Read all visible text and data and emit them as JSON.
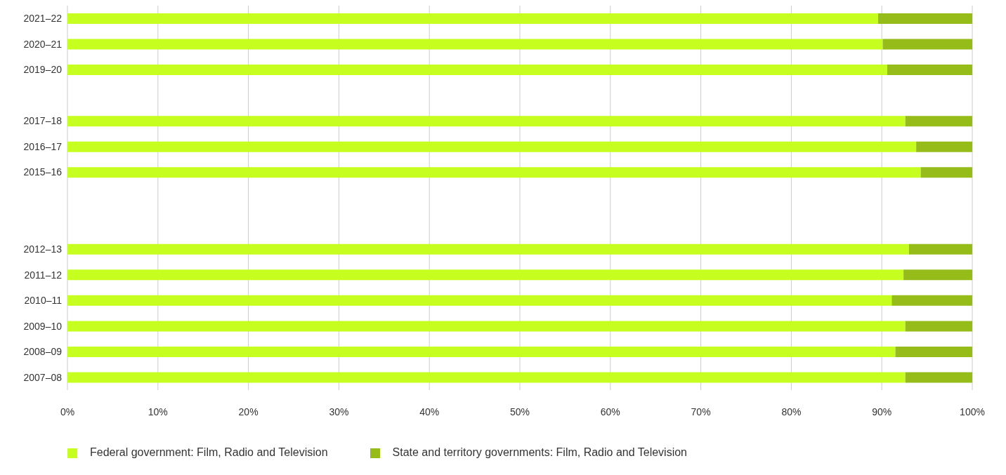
{
  "chart_data": {
    "type": "bar",
    "orientation": "horizontal",
    "stacked": true,
    "categories": [
      "2021–22",
      "2020–21",
      "2019–20",
      null,
      "2017–18",
      "2016–17",
      "2015–16",
      null,
      null,
      "2012–13",
      "2011–12",
      "2010–11",
      "2009–10",
      "2008–09",
      "2007–08"
    ],
    "series": [
      {
        "name": "Federal government: Film, Radio and Television",
        "color": "#c6ff1f",
        "values": [
          89.6,
          90.1,
          90.6,
          null,
          92.6,
          93.8,
          94.3,
          null,
          null,
          93.0,
          92.4,
          91.1,
          92.6,
          91.5,
          92.6
        ]
      },
      {
        "name": "State and territory governments: Film, Radio and Television",
        "color": "#96bc1a",
        "values": [
          10.4,
          9.9,
          9.4,
          null,
          7.4,
          6.2,
          5.7,
          null,
          null,
          7.0,
          7.6,
          8.9,
          7.4,
          8.5,
          7.4
        ]
      }
    ],
    "xlim": [
      0,
      100
    ],
    "xticks": [
      {
        "value": 0,
        "label": "0%"
      },
      {
        "value": 10,
        "label": "10%"
      },
      {
        "value": 20,
        "label": "20%"
      },
      {
        "value": 30,
        "label": "30%"
      },
      {
        "value": 40,
        "label": "40%"
      },
      {
        "value": 50,
        "label": "50%"
      },
      {
        "value": 60,
        "label": "60%"
      },
      {
        "value": 70,
        "label": "70%"
      },
      {
        "value": 80,
        "label": "80%"
      },
      {
        "value": 90,
        "label": "90%"
      },
      {
        "value": 100,
        "label": "100%"
      }
    ],
    "grid": "x",
    "legend": "bottom left"
  }
}
